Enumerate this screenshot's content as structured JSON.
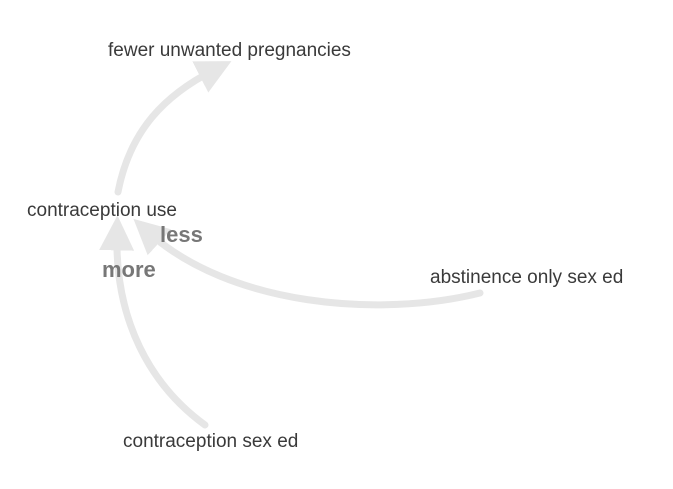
{
  "nodes": {
    "fewer_unwanted_pregnancies": "fewer unwanted pregnancies",
    "contraception_use": "contraception use",
    "abstinence_only_sex_ed": "abstinence only sex ed",
    "contraception_sex_ed": "contraception sex ed"
  },
  "edges": {
    "abstinence_to_use": "less",
    "sex_ed_to_use": "more"
  },
  "colors": {
    "arrow": "#e6e6e6",
    "node_text": "#3a3a3a",
    "edge_text": "#777777"
  }
}
